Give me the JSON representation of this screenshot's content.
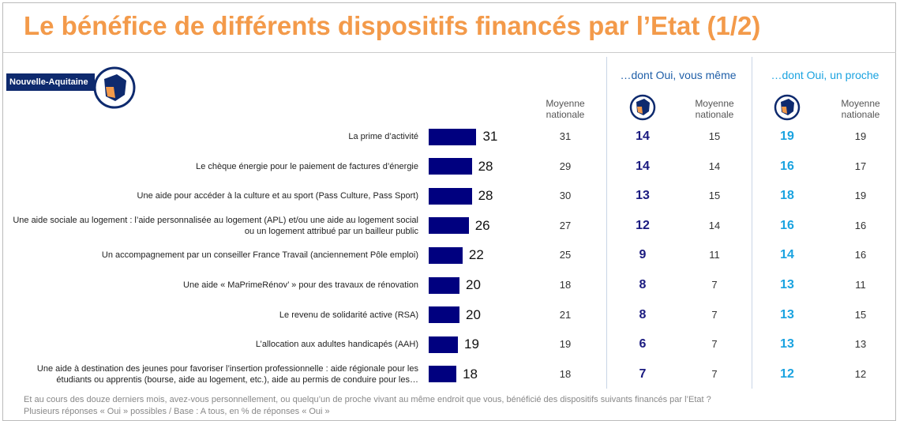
{
  "chart_data": {
    "type": "bar",
    "title": "Le bénéfice de différents dispositifs financés par l’Etat (1/2)",
    "region": "Nouvelle-Aquitaine",
    "color": "#00007f",
    "national_header": "Moyenne nationale",
    "categories": [
      "La prime d’activité",
      "Le chèque énergie pour le paiement de factures d’énergie",
      "Une aide pour accéder à la culture et au sport (Pass Culture, Pass Sport)",
      "Une aide sociale au logement : l’aide personnalisée au logement (APL) et/ou une aide au logement social ou un logement attribué par un bailleur public",
      "Un accompagnement par un conseiller France Travail (anciennement Pôle emploi)",
      "Une aide « MaPrimeRénov’ » pour des travaux de rénovation",
      "Le revenu de solidarité active (RSA)",
      "L’allocation aux adultes handicapés (AAH)",
      "Une aide à destination des jeunes pour favoriser l’insertion professionnelle : aide régionale pour les étudiants ou apprentis (bourse, aide au logement, etc.), aide au permis de conduire pour les…"
    ],
    "values": [
      31,
      28,
      28,
      26,
      22,
      20,
      20,
      19,
      18
    ],
    "national_values": [
      31,
      29,
      30,
      27,
      25,
      18,
      21,
      19,
      18
    ],
    "groups": [
      {
        "name": "…dont Oui, vous même",
        "color": "#1f5fa8",
        "value_color": "#1a1a80",
        "values": [
          14,
          14,
          13,
          12,
          9,
          8,
          8,
          6,
          7
        ],
        "national_header": "Moyenne nationale",
        "national_values": [
          15,
          14,
          15,
          14,
          11,
          7,
          7,
          7,
          7
        ]
      },
      {
        "name": "…dont Oui, un proche",
        "color": "#1aa3e0",
        "value_color": "#1aa3e0",
        "values": [
          19,
          16,
          18,
          16,
          14,
          13,
          13,
          13,
          12
        ],
        "national_header": "Moyenne nationale",
        "national_values": [
          19,
          17,
          19,
          16,
          16,
          11,
          15,
          13,
          12
        ]
      }
    ],
    "question": "Et au cours des douze derniers mois, avez-vous personnellement, ou quelqu’un de proche vivant au même endroit que vous, bénéficié des dispositifs suivants financés par l’Etat ?",
    "base": "Plusieurs réponses « Oui » possibles / Base : A tous, en % de réponses « Oui »"
  }
}
